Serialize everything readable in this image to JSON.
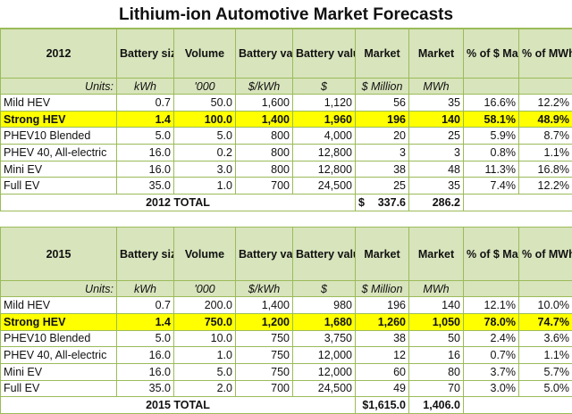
{
  "title": "Lithium-ion Automotive Market Forecasts",
  "columns": [
    "Battery size",
    "Volume",
    "Battery value",
    "Battery value",
    "Market",
    "Market",
    "% of $ Market",
    "% of MWh market"
  ],
  "units_label": "Units:",
  "units": [
    "kWh",
    "'000",
    "$/kWh",
    "$",
    "$ Million",
    "MWh",
    "",
    ""
  ],
  "highlight_color": "#ffff00",
  "header_color": "#d8e4bc",
  "tables": [
    {
      "year": "2012",
      "rows": [
        {
          "name": "Mild HEV",
          "values": [
            "0.7",
            "50.0",
            "1,600",
            "1,120",
            "56",
            "35",
            "16.6%",
            "12.2%"
          ],
          "highlight": false
        },
        {
          "name": "Strong HEV",
          "values": [
            "1.4",
            "100.0",
            "1,400",
            "1,960",
            "196",
            "140",
            "58.1%",
            "48.9%"
          ],
          "highlight": true
        },
        {
          "name": "PHEV10 Blended",
          "values": [
            "5.0",
            "5.0",
            "800",
            "4,000",
            "20",
            "25",
            "5.9%",
            "8.7%"
          ],
          "highlight": false
        },
        {
          "name": "PHEV 40, All-electric",
          "values": [
            "16.0",
            "0.2",
            "800",
            "12,800",
            "3",
            "3",
            "0.8%",
            "1.1%"
          ],
          "highlight": false
        },
        {
          "name": "Mini EV",
          "values": [
            "16.0",
            "3.0",
            "800",
            "12,800",
            "38",
            "48",
            "11.3%",
            "16.8%"
          ],
          "highlight": false
        },
        {
          "name": "Full EV",
          "values": [
            "35.0",
            "1.0",
            "700",
            "24,500",
            "25",
            "35",
            "7.4%",
            "12.2%"
          ],
          "highlight": false
        }
      ],
      "total_label": "2012 TOTAL",
      "total_market_symbol": "$",
      "total_market": "337.6",
      "total_mwh": "286.2"
    },
    {
      "year": "2015",
      "rows": [
        {
          "name": "Mild HEV",
          "values": [
            "0.7",
            "200.0",
            "1,400",
            "980",
            "196",
            "140",
            "12.1%",
            "10.0%"
          ],
          "highlight": false
        },
        {
          "name": "Strong HEV",
          "values": [
            "1.4",
            "750.0",
            "1,200",
            "1,680",
            "1,260",
            "1,050",
            "78.0%",
            "74.7%"
          ],
          "highlight": true
        },
        {
          "name": "PHEV10 Blended",
          "values": [
            "5.0",
            "10.0",
            "750",
            "3,750",
            "38",
            "50",
            "2.4%",
            "3.6%"
          ],
          "highlight": false
        },
        {
          "name": "PHEV 40, All-electric",
          "values": [
            "16.0",
            "1.0",
            "750",
            "12,000",
            "12",
            "16",
            "0.7%",
            "1.1%"
          ],
          "highlight": false
        },
        {
          "name": "Mini EV",
          "values": [
            "16.0",
            "5.0",
            "750",
            "12,000",
            "60",
            "80",
            "3.7%",
            "5.7%"
          ],
          "highlight": false
        },
        {
          "name": "Full EV",
          "values": [
            "35.0",
            "2.0",
            "700",
            "24,500",
            "49",
            "70",
            "3.0%",
            "5.0%"
          ],
          "highlight": false
        }
      ],
      "total_label": "2015 TOTAL",
      "total_market_symbol": "",
      "total_market": "$1,615.0",
      "total_mwh": "1,406.0"
    }
  ]
}
